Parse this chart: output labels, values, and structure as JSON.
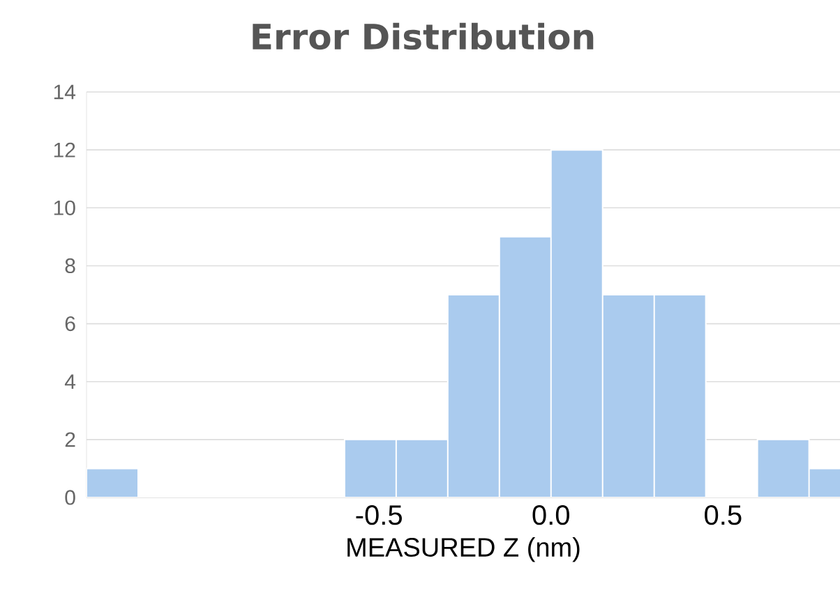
{
  "chart_data": {
    "type": "histogram",
    "title": "Error Distribution",
    "xlabel": "MEASURED Z (nm)",
    "bins": [
      -1.35,
      -1.2,
      -1.05,
      -0.9,
      -0.75,
      -0.6,
      -0.45,
      -0.3,
      -0.15,
      0,
      0.15,
      0.3,
      0.45,
      0.6,
      0.75,
      0.9
    ],
    "values": [
      1,
      0,
      0,
      0,
      0,
      2,
      2,
      7,
      9,
      12,
      7,
      7,
      0,
      2,
      1
    ],
    "color": "#aacbee",
    "xlim": [
      -1.35,
      0.84
    ],
    "ylim": [
      0,
      14
    ],
    "xticks": [
      -0.5,
      {
        "value": 0,
        "label": "0.0"
      },
      0.5
    ],
    "yticks": [
      0,
      2,
      4,
      6,
      8,
      10,
      12,
      14
    ],
    "grid": "y"
  }
}
